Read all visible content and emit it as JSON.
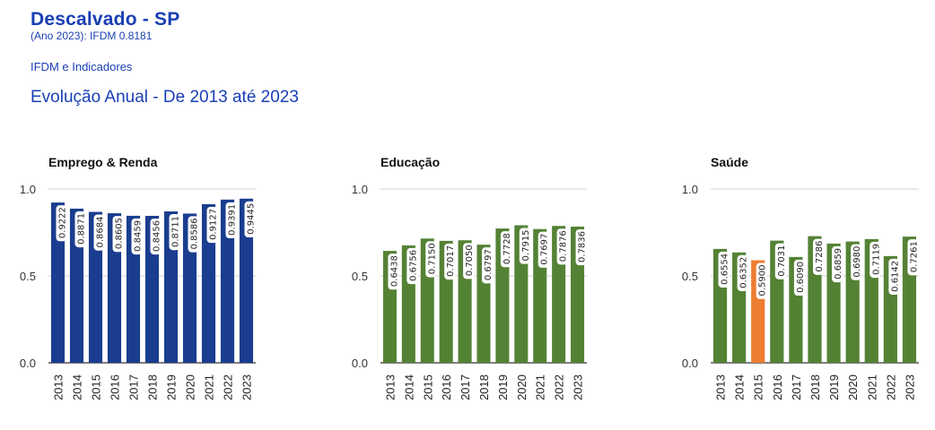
{
  "header": {
    "title": "Descalvado - SP",
    "subtitle": "(Ano 2023): IFDM 0.8181",
    "link": "IFDM e Indicadores",
    "section": "Evolução Anual - De 2013 até 2023"
  },
  "colors": {
    "emprego": "#1a3d8f",
    "educacao": "#548235",
    "saude": "#548235",
    "highlight": "#ed7d31"
  },
  "chart_data": [
    {
      "type": "bar",
      "title": "Emprego & Renda",
      "categories": [
        "2013",
        "2014",
        "2015",
        "2016",
        "2017",
        "2018",
        "2019",
        "2020",
        "2021",
        "2022",
        "2023"
      ],
      "values": [
        0.9222,
        0.8871,
        0.8684,
        0.8605,
        0.8459,
        0.8456,
        0.8711,
        0.8586,
        0.9127,
        0.9391,
        0.9445
      ],
      "labels": [
        "0.9222",
        "0.8871",
        "0.8684",
        "0.8605",
        "0.8459",
        "0.8456",
        "0.8711",
        "0.8586",
        "0.9127",
        "0.9391",
        "0.9445"
      ],
      "ylim": [
        0,
        1
      ],
      "yticks": [
        "0.0",
        "0.5",
        "1.0"
      ],
      "color": "#1a3d8f"
    },
    {
      "type": "bar",
      "title": "Educação",
      "categories": [
        "2013",
        "2014",
        "2015",
        "2016",
        "2017",
        "2018",
        "2019",
        "2020",
        "2021",
        "2022",
        "2023"
      ],
      "values": [
        0.6438,
        0.6756,
        0.715,
        0.7017,
        0.705,
        0.6797,
        0.7728,
        0.7915,
        0.7697,
        0.7876,
        0.7836
      ],
      "labels": [
        "0.6438",
        "0.6756",
        "0.7150",
        "0.7017",
        "0.7050",
        "0.6797",
        "0.7728",
        "0.7915",
        "0.7697",
        "0.7876",
        "0.7836"
      ],
      "ylim": [
        0,
        1
      ],
      "yticks": [
        "0.0",
        "0.5",
        "1.0"
      ],
      "color": "#548235"
    },
    {
      "type": "bar",
      "title": "Saúde",
      "categories": [
        "2013",
        "2014",
        "2015",
        "2016",
        "2017",
        "2018",
        "2019",
        "2020",
        "2021",
        "2022",
        "2023"
      ],
      "values": [
        0.6554,
        0.6352,
        0.59,
        0.7031,
        0.609,
        0.7286,
        0.6859,
        0.698,
        0.7119,
        0.6142,
        0.7261
      ],
      "labels": [
        "0.6554",
        "0.6352",
        "0.5900",
        "0.7031",
        "0.6090",
        "0.7286",
        "0.6859",
        "0.6980",
        "0.7119",
        "0.6142",
        "0.7261"
      ],
      "ylim": [
        0,
        1
      ],
      "yticks": [
        "0.0",
        "0.5",
        "1.0"
      ],
      "color": "#548235",
      "highlight_index": 2,
      "highlight_color": "#ed7d31"
    }
  ]
}
